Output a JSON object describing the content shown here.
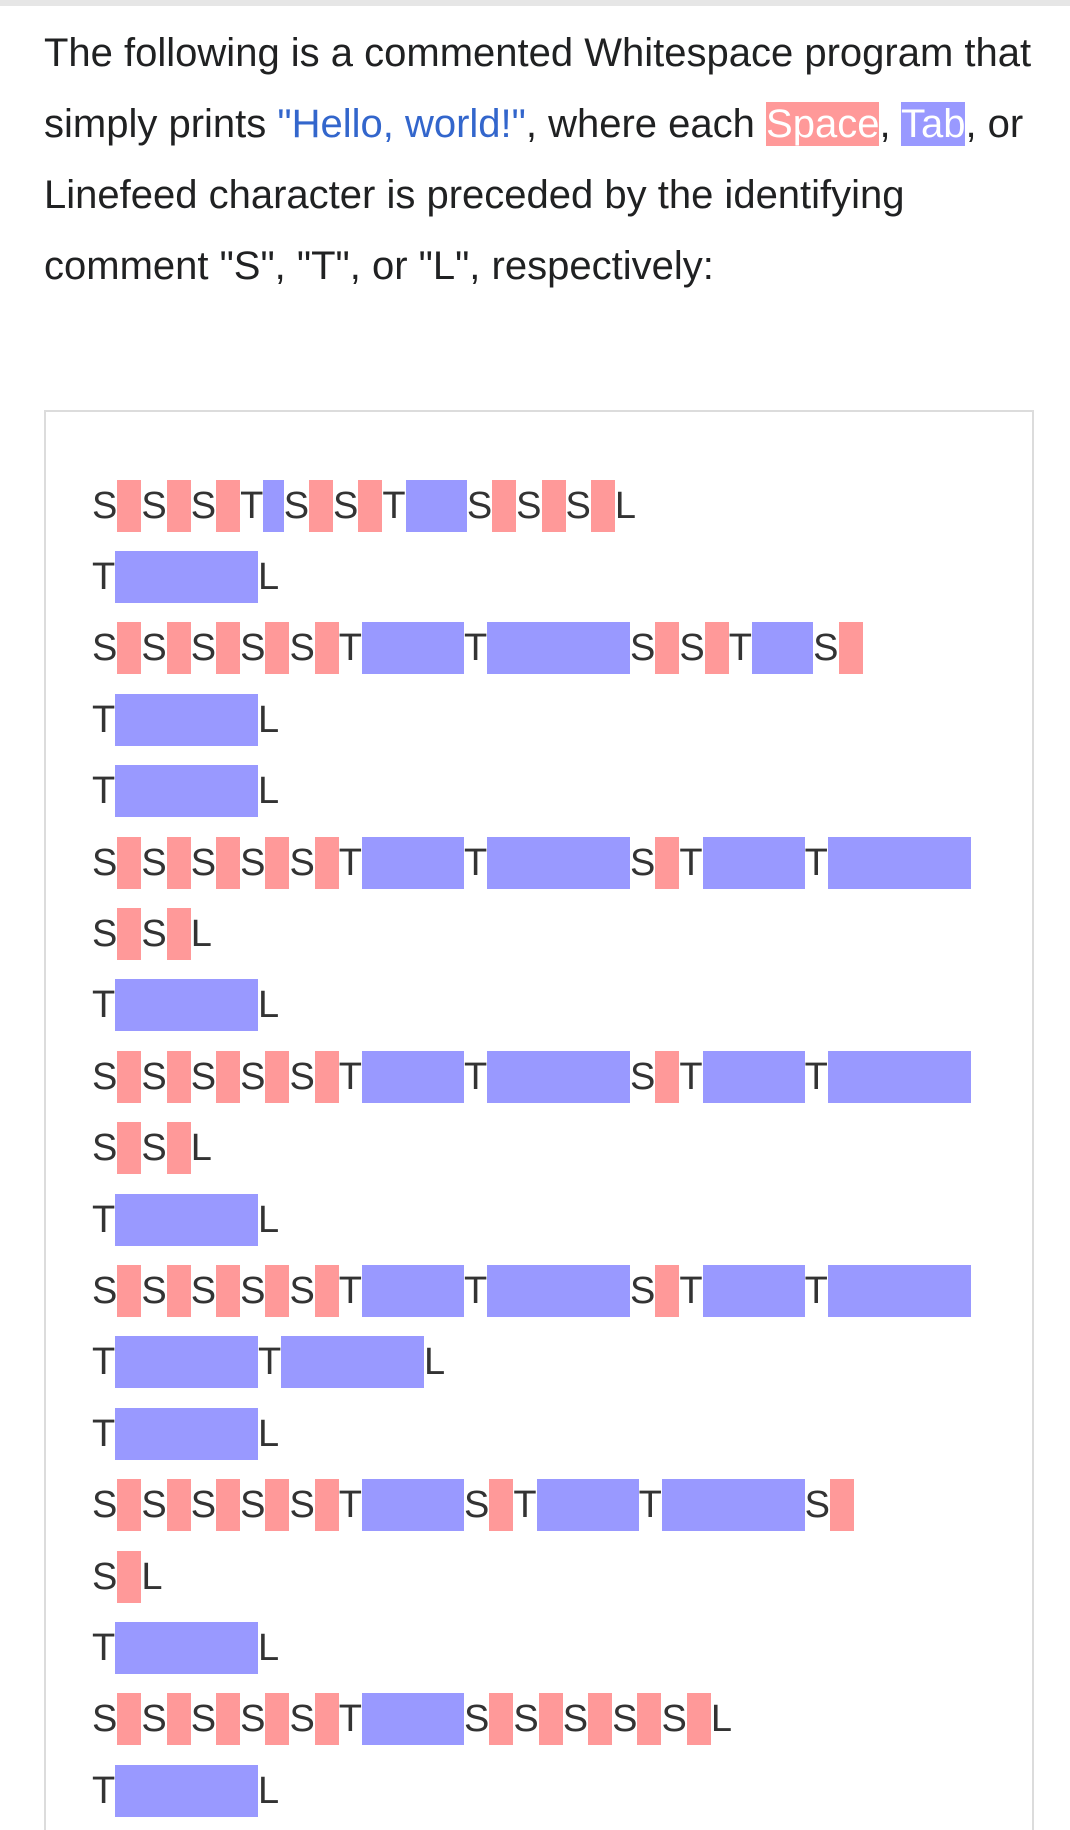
{
  "intro": {
    "part1": "The following is a commented Whitespace program that simply prints ",
    "quote": "\"Hello, world!\"",
    "part2": ", where each ",
    "space_word": "Space",
    "comma": ", ",
    "tab_word": "Tab",
    "part3": ", or Linefeed character is preceded by the identifying comment \"S\", \"T\", or \"L\", respectively:"
  },
  "colors": {
    "space": "#ff9999",
    "tab": "#9999ff",
    "link": "#3366cc"
  },
  "code_lines": [
    "SSSTSSTSSSL",
    "TL",
    "SSSSSTTSSTS",
    "TL",
    "TL",
    "SSSSSTTSTT",
    "SSL",
    "TL",
    "SSSSSTTSTT",
    "SSL",
    "TL",
    "SSSSSTTSTT",
    "TTL",
    "TL",
    "SSSSSTSTTS",
    "SL",
    "TL",
    "SSSSSTSSSSSL",
    "TL"
  ]
}
